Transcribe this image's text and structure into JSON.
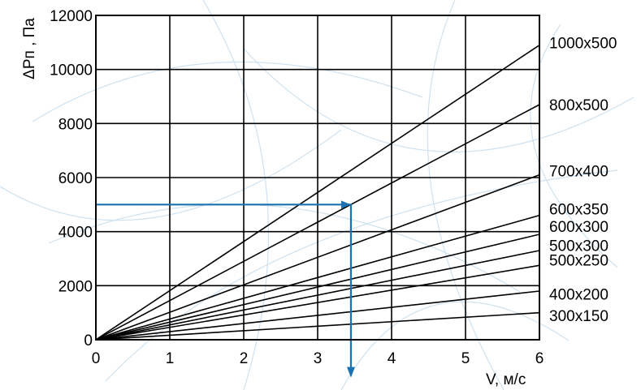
{
  "chart_data": {
    "type": "line",
    "title": "",
    "xlabel": "V, м/с",
    "ylabel": "ΔPп , Па",
    "xlim": [
      0,
      6
    ],
    "ylim": [
      0,
      12000
    ],
    "grid": true,
    "x_ticks": [
      0,
      1,
      2,
      3,
      4,
      5,
      6
    ],
    "y_ticks": [
      0,
      2000,
      4000,
      6000,
      8000,
      10000,
      12000
    ],
    "series": [
      {
        "name": "1000x500",
        "x": [
          0,
          6
        ],
        "y": [
          0,
          10900
        ]
      },
      {
        "name": "800x500",
        "x": [
          0,
          6
        ],
        "y": [
          0,
          8700
        ]
      },
      {
        "name": "700x400",
        "x": [
          0,
          6
        ],
        "y": [
          0,
          6100
        ]
      },
      {
        "name": "600x350",
        "x": [
          0,
          6
        ],
        "y": [
          0,
          4600
        ]
      },
      {
        "name": "600x300",
        "x": [
          0,
          6
        ],
        "y": [
          0,
          3900
        ]
      },
      {
        "name": "500x300",
        "x": [
          0,
          6
        ],
        "y": [
          0,
          3300
        ]
      },
      {
        "name": "500x250",
        "x": [
          0,
          6
        ],
        "y": [
          0,
          2750
        ]
      },
      {
        "name": "400x200",
        "x": [
          0,
          6
        ],
        "y": [
          0,
          1800
        ]
      },
      {
        "name": "300x150",
        "x": [
          0,
          6
        ],
        "y": [
          0,
          1000
        ]
      }
    ],
    "series_labels": [
      {
        "text": "1000x500",
        "y": 11000
      },
      {
        "text": "800x500",
        "y": 8700
      },
      {
        "text": "700x400",
        "y": 6250
      },
      {
        "text": "600x350",
        "y": 4850
      },
      {
        "text": "600x300",
        "y": 4200
      },
      {
        "text": "500x300",
        "y": 3500
      },
      {
        "text": "500x250",
        "y": 2950
      },
      {
        "text": "400x200",
        "y": 1700
      },
      {
        "text": "300x150",
        "y": 900
      }
    ],
    "annotation": {
      "start": {
        "x": 0,
        "y": 5000
      },
      "corner": {
        "x": 3.45,
        "y": 5000
      },
      "end": {
        "x": 3.45,
        "y": -1400
      },
      "color": "#1a73b0"
    },
    "colors": {
      "lines": "#000000",
      "annotation": "#1a73b0",
      "watermark": "#cfe2f0"
    }
  }
}
